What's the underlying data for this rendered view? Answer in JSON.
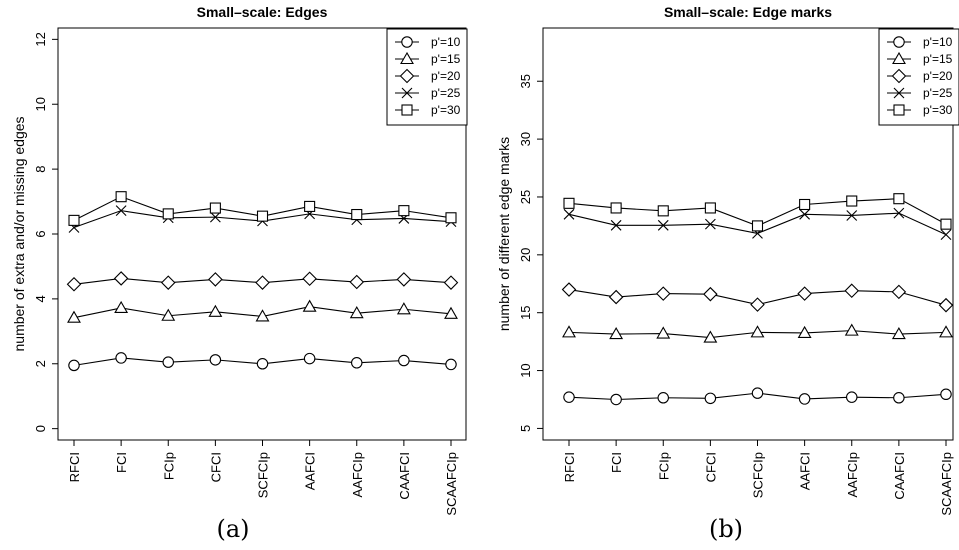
{
  "figure": {
    "panels": [
      {
        "caption": "(a)"
      },
      {
        "caption": "(b)"
      }
    ]
  },
  "chart_data": [
    {
      "type": "line",
      "title": "Small–scale: Edges",
      "xlabel": "",
      "ylabel": "number of extra and/or missing edges",
      "categories": [
        "RFCI",
        "FCI",
        "FCIp",
        "CFCI",
        "SCFCIp",
        "AAFCI",
        "AAFCIp",
        "CAAFCI",
        "SCAAFCIp"
      ],
      "ylim": [
        -0.35,
        12.35
      ],
      "yticks": [
        0,
        2,
        4,
        6,
        8,
        10,
        12
      ],
      "legend_position": "top-right",
      "grid": false,
      "series": [
        {
          "name": "p'=10",
          "marker": "circle",
          "values": [
            1.95,
            2.18,
            2.05,
            2.12,
            2.0,
            2.16,
            2.03,
            2.1,
            1.98
          ]
        },
        {
          "name": "p'=15",
          "marker": "triangle",
          "values": [
            3.42,
            3.72,
            3.48,
            3.6,
            3.46,
            3.76,
            3.56,
            3.68,
            3.54
          ]
        },
        {
          "name": "p'=20",
          "marker": "diamond",
          "values": [
            4.45,
            4.63,
            4.5,
            4.6,
            4.5,
            4.62,
            4.52,
            4.6,
            4.5
          ]
        },
        {
          "name": "p'=25",
          "marker": "cross",
          "values": [
            6.2,
            6.72,
            6.5,
            6.52,
            6.4,
            6.62,
            6.44,
            6.48,
            6.38
          ]
        },
        {
          "name": "p'=30",
          "marker": "square",
          "values": [
            6.42,
            7.15,
            6.62,
            6.8,
            6.55,
            6.85,
            6.6,
            6.72,
            6.5
          ]
        }
      ]
    },
    {
      "type": "line",
      "title": "Small–scale: Edge marks",
      "xlabel": "",
      "ylabel": "number of different edge marks",
      "categories": [
        "RFCI",
        "FCI",
        "FCIp",
        "CFCI",
        "SCFCIp",
        "AAFCI",
        "AAFCIp",
        "CAAFCI",
        "SCAAFCIp"
      ],
      "ylim": [
        4.0,
        39.6
      ],
      "yticks": [
        5,
        10,
        15,
        20,
        25,
        30,
        35
      ],
      "legend_position": "top-right",
      "grid": false,
      "series": [
        {
          "name": "p'=10",
          "marker": "circle",
          "values": [
            7.7,
            7.5,
            7.65,
            7.6,
            8.05,
            7.55,
            7.7,
            7.65,
            7.95
          ]
        },
        {
          "name": "p'=15",
          "marker": "triangle",
          "values": [
            13.3,
            13.15,
            13.2,
            12.85,
            13.3,
            13.25,
            13.45,
            13.15,
            13.3
          ]
        },
        {
          "name": "p'=20",
          "marker": "diamond",
          "values": [
            17.0,
            16.35,
            16.65,
            16.6,
            15.7,
            16.65,
            16.9,
            16.8,
            15.65
          ]
        },
        {
          "name": "p'=25",
          "marker": "cross",
          "values": [
            23.5,
            22.55,
            22.55,
            22.65,
            21.85,
            23.5,
            23.4,
            23.6,
            21.75
          ]
        },
        {
          "name": "p'=30",
          "marker": "square",
          "values": [
            24.45,
            24.05,
            23.8,
            24.05,
            22.5,
            24.35,
            24.65,
            24.85,
            22.65
          ]
        }
      ]
    }
  ]
}
